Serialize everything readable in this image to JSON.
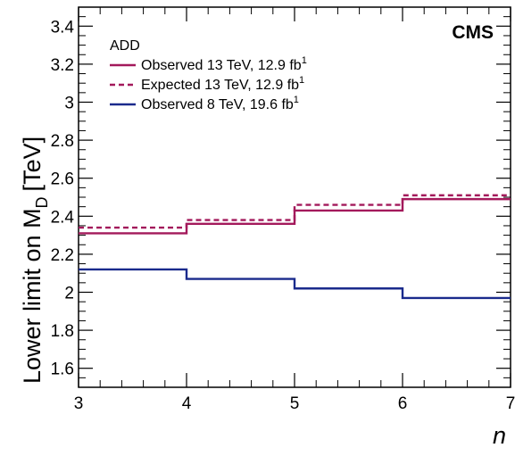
{
  "chart_data": {
    "type": "line",
    "step": true,
    "title": "",
    "experiment_label": "CMS",
    "xlabel": "n",
    "ylabel_main": "Lower limit on M",
    "ylabel_sub": "D",
    "ylabel_unit": "[TeV]",
    "xlim": [
      3,
      7
    ],
    "ylim": [
      1.5,
      3.5
    ],
    "x_ticks": [
      3,
      4,
      5,
      6,
      7
    ],
    "y_ticks": [
      1.6,
      1.8,
      2,
      2.2,
      2.4,
      2.6,
      2.8,
      3,
      3.2,
      3.4
    ],
    "grid": false,
    "legend": {
      "header": "ADD",
      "placement": "top-left"
    },
    "bin_edges": [
      3,
      4,
      5,
      6,
      7
    ],
    "series": [
      {
        "name": "Observed 13 TeV, 12.9 fb",
        "name_sup": "1",
        "color": "#a3195b",
        "dash": false,
        "values": [
          2.31,
          2.36,
          2.43,
          2.49
        ]
      },
      {
        "name": "Expected 13 TeV, 12.9 fb",
        "name_sup": "1",
        "color": "#a3195b",
        "dash": true,
        "values": [
          2.34,
          2.38,
          2.46,
          2.51
        ]
      },
      {
        "name": "Observed 8 TeV, 19.6 fb",
        "name_sup": "1",
        "color": "#1a2a8c",
        "dash": false,
        "values": [
          2.12,
          2.07,
          2.02,
          1.97
        ]
      }
    ]
  }
}
